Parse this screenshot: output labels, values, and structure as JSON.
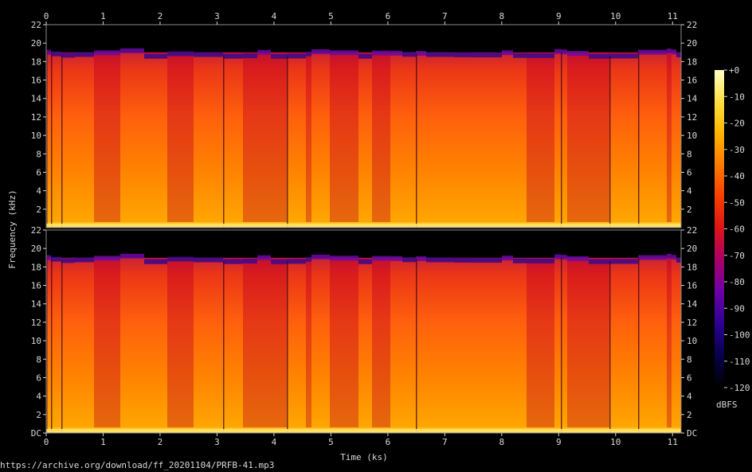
{
  "chart_data": {
    "type": "heatmap",
    "title": "",
    "xlabel": "Time (ks)",
    "ylabel": "Frequency (kHz)",
    "x_ticks": [
      "0",
      "1",
      "2",
      "3",
      "4",
      "5",
      "6",
      "7",
      "8",
      "9",
      "10",
      "11"
    ],
    "xlim": [
      0,
      11.15
    ],
    "y_ticks_top": [
      "22",
      "20",
      "18",
      "16",
      "14",
      "12",
      "10",
      "8",
      "6",
      "4",
      "2"
    ],
    "y_ticks_bottom": [
      "22",
      "20",
      "18",
      "16",
      "14",
      "12",
      "10",
      "8",
      "6",
      "4",
      "2",
      "DC"
    ],
    "ylim_khz": [
      0,
      22
    ],
    "channels": 2,
    "colorbar": {
      "label": "dBFS",
      "ticks": [
        "+0",
        "-10",
        "-20",
        "-30",
        "-40",
        "-50",
        "-60",
        "-70",
        "-80",
        "-90",
        "-100",
        "-110",
        "-120"
      ],
      "range_db": [
        -120,
        0
      ],
      "colors": [
        "#000000",
        "#06004a",
        "#2c0090",
        "#6a00a8",
        "#a8006a",
        "#dc1418",
        "#f53e00",
        "#ff7800",
        "#ffb400",
        "#ffe040",
        "#ffffc8"
      ]
    },
    "spectral_cutoff_khz": 19,
    "grid": false
  },
  "footer": {
    "source_url": "https://archive.org/download/ff_20201104/PRFB-41.mp3"
  }
}
